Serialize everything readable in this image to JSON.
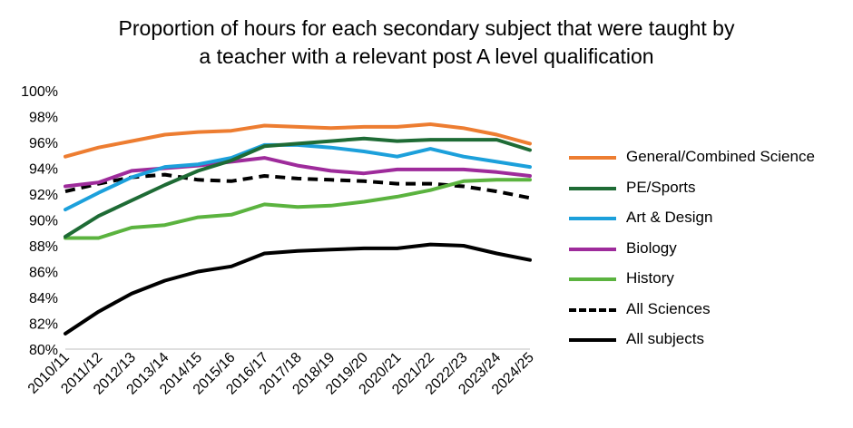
{
  "chart_data": {
    "type": "line",
    "title": [
      "Proportion of hours for each secondary subject that were taught by",
      "a teacher with a relevant post A level qualification"
    ],
    "xlabel": "",
    "ylabel": "",
    "categories": [
      "2010/11",
      "2011/12",
      "2012/13",
      "2013/14",
      "2014/15",
      "2015/16",
      "2016/17",
      "2017/18",
      "2018/19",
      "2019/20",
      "2020/21",
      "2021/22",
      "2022/23",
      "2023/24",
      "2024/25"
    ],
    "ylim": [
      80,
      100
    ],
    "yticks": [
      "80%",
      "82%",
      "84%",
      "86%",
      "88%",
      "90%",
      "92%",
      "94%",
      "96%",
      "98%",
      "100%"
    ],
    "grid": false,
    "legend_position": "right",
    "series": [
      {
        "name": "General/Combined Science",
        "color": "#ED7D31",
        "dash": "solid",
        "values": [
          94.9,
          95.6,
          96.1,
          96.6,
          96.8,
          96.9,
          97.3,
          97.2,
          97.1,
          97.2,
          97.2,
          97.4,
          97.1,
          96.6,
          95.9
        ]
      },
      {
        "name": "PE/Sports",
        "color": "#1E6B35",
        "dash": "solid",
        "values": [
          88.7,
          90.3,
          91.5,
          92.7,
          93.8,
          94.6,
          95.7,
          95.9,
          96.1,
          96.3,
          96.1,
          96.2,
          96.2,
          96.2,
          95.4
        ]
      },
      {
        "name": "Art & Design",
        "color": "#1CA0DB",
        "dash": "solid",
        "values": [
          90.8,
          92.1,
          93.3,
          94.1,
          94.3,
          94.8,
          95.8,
          95.8,
          95.6,
          95.3,
          94.9,
          95.5,
          94.9,
          94.5,
          94.1
        ]
      },
      {
        "name": "Biology",
        "color": "#9E2B9B",
        "dash": "solid",
        "values": [
          92.6,
          92.9,
          93.8,
          94.0,
          94.2,
          94.5,
          94.8,
          94.2,
          93.8,
          93.6,
          93.9,
          93.9,
          93.9,
          93.7,
          93.4
        ]
      },
      {
        "name": "History",
        "color": "#5BB33F",
        "dash": "solid",
        "values": [
          88.6,
          88.6,
          89.4,
          89.6,
          90.2,
          90.4,
          91.2,
          91.0,
          91.1,
          91.4,
          91.8,
          92.3,
          93.0,
          93.1,
          93.1
        ]
      },
      {
        "name": "All Sciences",
        "color": "#000000",
        "dash": "dashed",
        "values": [
          92.2,
          92.8,
          93.3,
          93.5,
          93.1,
          93.0,
          93.4,
          93.2,
          93.1,
          93.0,
          92.8,
          92.8,
          92.6,
          92.2,
          91.7
        ]
      },
      {
        "name": "All subjects",
        "color": "#000000",
        "dash": "solid",
        "values": [
          81.2,
          82.9,
          84.3,
          85.3,
          86.0,
          86.4,
          87.4,
          87.6,
          87.7,
          87.8,
          87.8,
          88.1,
          88.0,
          87.4,
          86.9
        ]
      }
    ]
  }
}
